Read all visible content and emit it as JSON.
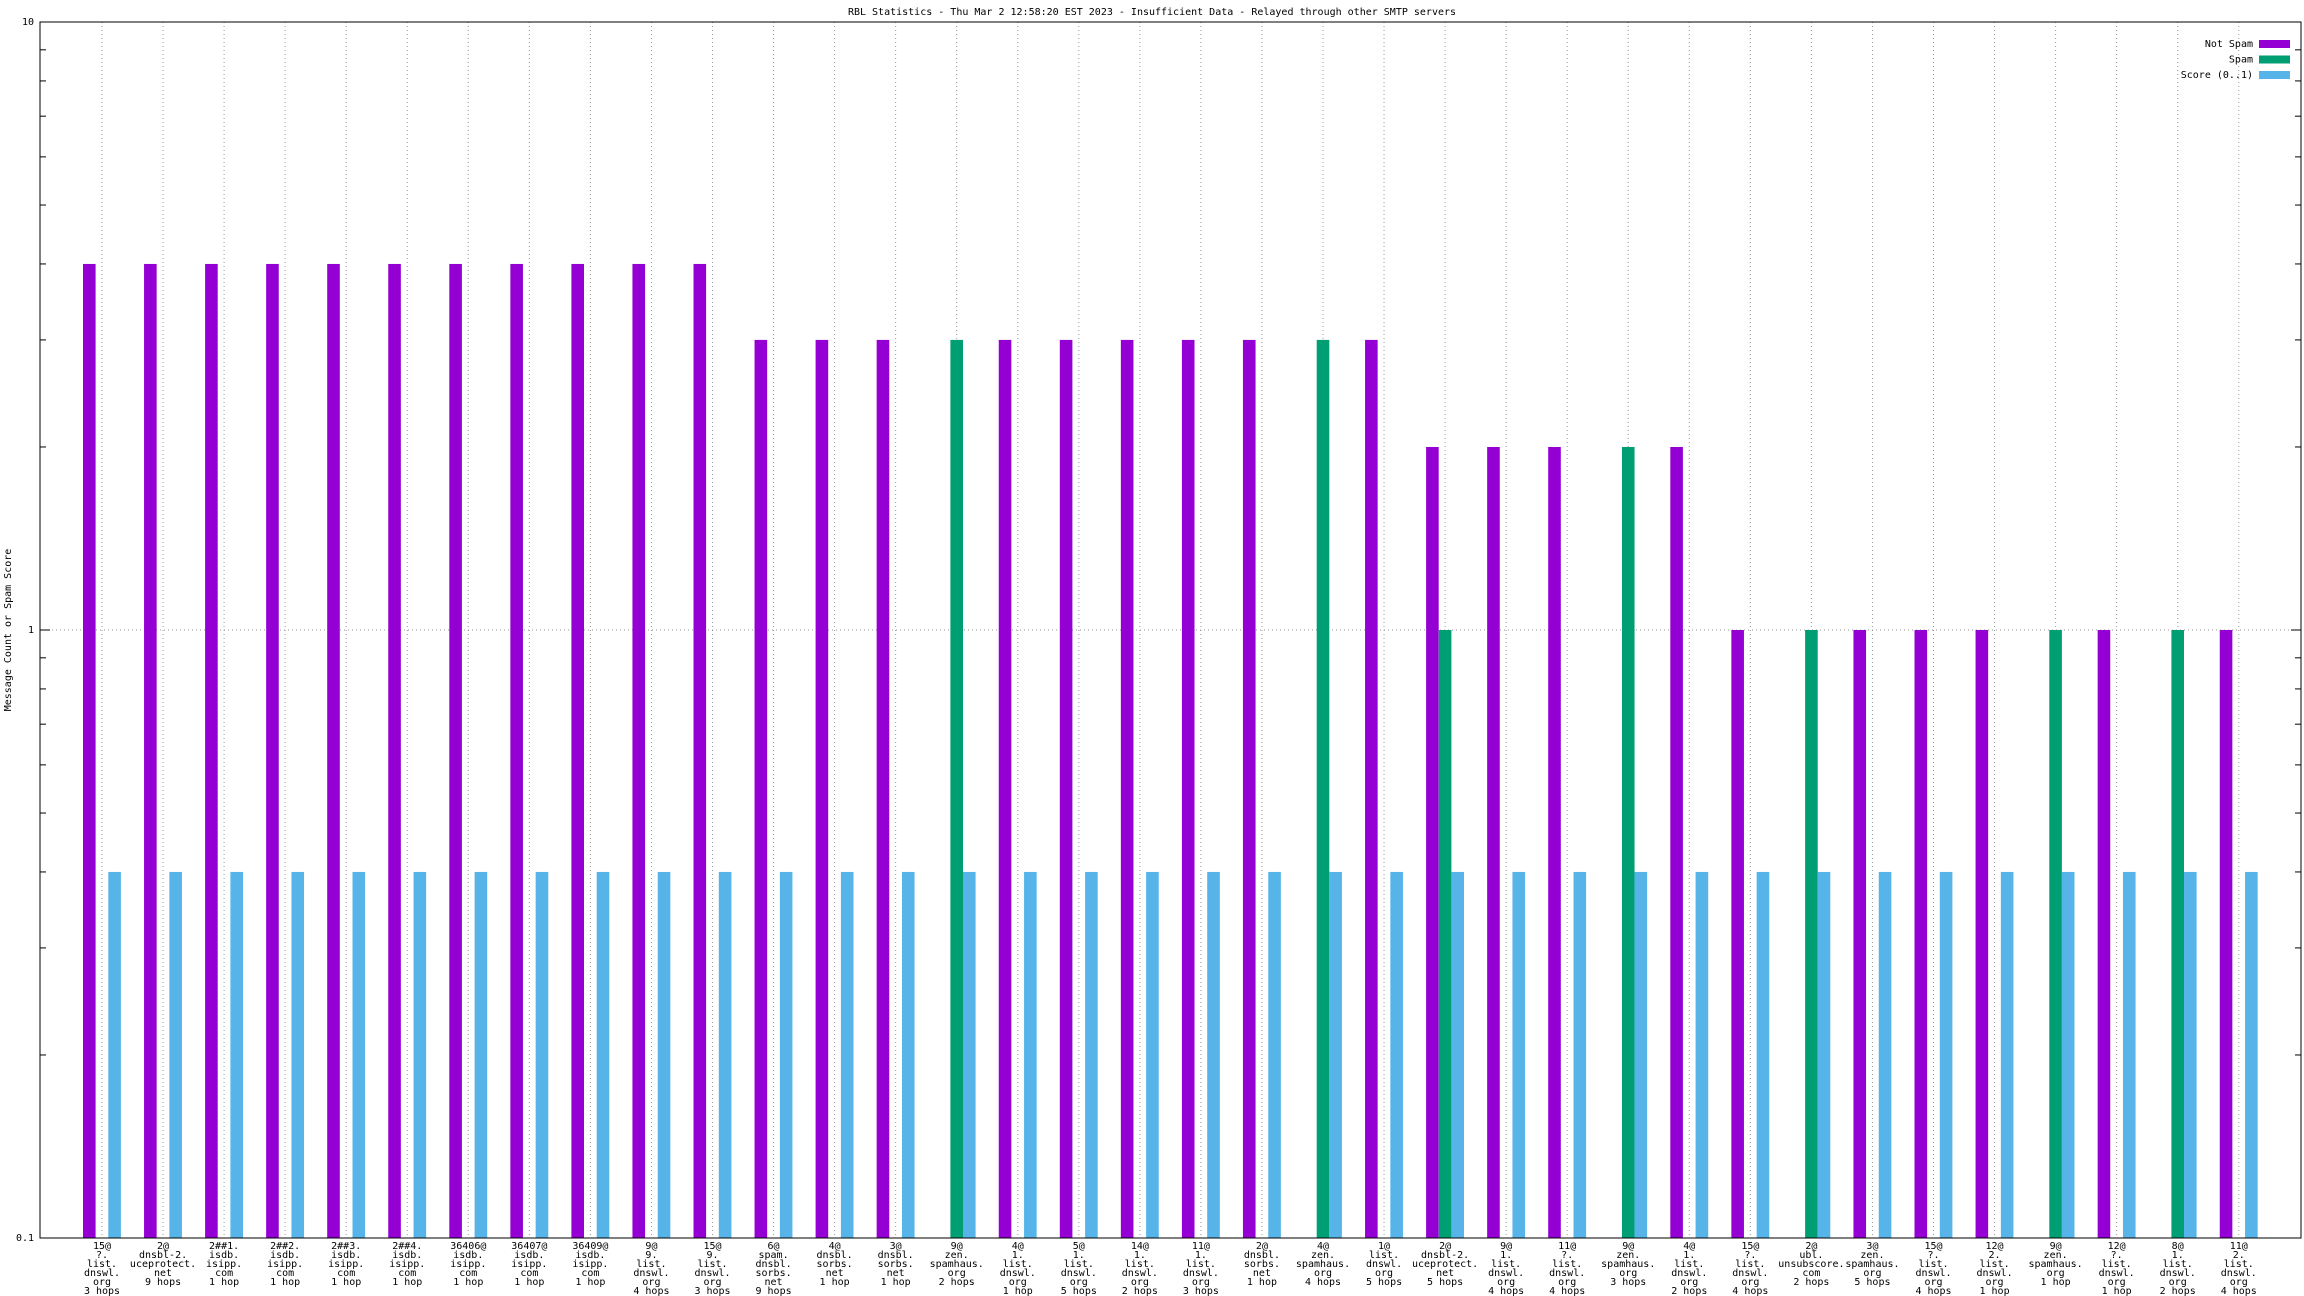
{
  "chart_data": {
    "type": "bar",
    "title": "RBL Statistics - Thu Mar  2 12:58:20 EST 2023 - Insufficient Data - Relayed through other SMTP servers",
    "y_label": "Message Count or Spam Score",
    "log_scale": true,
    "grid": true,
    "legend": "top-right",
    "ylim": [
      0.1,
      10
    ],
    "yticks": [
      0.1,
      1,
      10
    ],
    "yminorticks": [
      0.2,
      0.3,
      0.4,
      0.5,
      0.6,
      0.7,
      0.8,
      0.9,
      2,
      3,
      4,
      5,
      6,
      7,
      8,
      9
    ],
    "categories": [
      [
        "15@",
        "?.",
        "list.",
        "dnswl.",
        "org",
        "3 hops"
      ],
      [
        "2@",
        "dnsbl-2.",
        "uceprotect.",
        "net",
        "9 hops"
      ],
      [
        "2##1.",
        "isdb.",
        "isipp.",
        "com",
        "1 hop"
      ],
      [
        "2##2.",
        "isdb.",
        "isipp.",
        "com",
        "1 hop"
      ],
      [
        "2##3.",
        "isdb.",
        "isipp.",
        "com",
        "1 hop"
      ],
      [
        "2##4.",
        "isdb.",
        "isipp.",
        "com",
        "1 hop"
      ],
      [
        "36406@",
        "isdb.",
        "isipp.",
        "com",
        "1 hop"
      ],
      [
        "36407@",
        "isdb.",
        "isipp.",
        "com",
        "1 hop"
      ],
      [
        "36409@",
        "isdb.",
        "isipp.",
        "com",
        "1 hop"
      ],
      [
        "9@",
        "9.",
        "list.",
        "dnswl.",
        "org",
        "4 hops"
      ],
      [
        "15@",
        "9.",
        "list.",
        "dnswl.",
        "org",
        "3 hops"
      ],
      [
        "6@",
        "spam.",
        "dnsbl.",
        "sorbs.",
        "net",
        "9 hops"
      ],
      [
        "4@",
        "dnsbl.",
        "sorbs.",
        "net",
        "1 hop"
      ],
      [
        "3@",
        "dnsbl.",
        "sorbs.",
        "net",
        "1 hop"
      ],
      [
        "9@",
        "zen.",
        "spamhaus.",
        "org",
        "2 hops"
      ],
      [
        "4@",
        "1.",
        "list.",
        "dnswl.",
        "org",
        "1 hop"
      ],
      [
        "5@",
        "1.",
        "list.",
        "dnswl.",
        "org",
        "5 hops"
      ],
      [
        "14@",
        "1.",
        "list.",
        "dnswl.",
        "org",
        "2 hops"
      ],
      [
        "11@",
        "1.",
        "list.",
        "dnswl.",
        "org",
        "3 hops"
      ],
      [
        "2@",
        "dnsbl.",
        "sorbs.",
        "net",
        "1 hop"
      ],
      [
        "4@",
        "zen.",
        "spamhaus.",
        "org",
        "4 hops"
      ],
      [
        "1@",
        "list.",
        "dnswl.",
        "org",
        "5 hops"
      ],
      [
        "2@",
        "dnsbl-2.",
        "uceprotect.",
        "net",
        "5 hops"
      ],
      [
        "9@",
        "1.",
        "list.",
        "dnswl.",
        "org",
        "4 hops"
      ],
      [
        "11@",
        "?.",
        "list.",
        "dnswl.",
        "org",
        "4 hops"
      ],
      [
        "9@",
        "zen.",
        "spamhaus.",
        "org",
        "3 hops"
      ],
      [
        "4@",
        "1.",
        "list.",
        "dnswl.",
        "org",
        "2 hops"
      ],
      [
        "15@",
        "?.",
        "list.",
        "dnswl.",
        "org",
        "4 hops"
      ],
      [
        "2@",
        "ubl.",
        "unsubscore.",
        "com",
        "2 hops"
      ],
      [
        "3@",
        "zen.",
        "spamhaus.",
        "org",
        "5 hops"
      ],
      [
        "15@",
        "?.",
        "list.",
        "dnswl.",
        "org",
        "4 hops"
      ],
      [
        "12@",
        "2.",
        "list.",
        "dnswl.",
        "org",
        "1 hop"
      ],
      [
        "9@",
        "zen.",
        "spamhaus.",
        "org",
        "1 hop"
      ],
      [
        "12@",
        "?.",
        "list.",
        "dnswl.",
        "org",
        "1 hop"
      ],
      [
        "8@",
        "1.",
        "list.",
        "dnswl.",
        "org",
        "2 hops"
      ],
      [
        "11@",
        "2.",
        "list.",
        "dnswl.",
        "org",
        "4 hops"
      ]
    ],
    "series": [
      {
        "name": "Not Spam",
        "color": "#9400d3",
        "values": [
          4,
          4,
          4,
          4,
          4,
          4,
          4,
          4,
          4,
          4,
          4,
          3,
          3,
          3,
          null,
          3,
          3,
          3,
          3,
          3,
          null,
          3,
          2,
          2,
          2,
          null,
          2,
          1,
          null,
          1,
          1,
          1,
          null,
          1,
          null,
          1
        ]
      },
      {
        "name": "Spam",
        "color": "#009e73",
        "values": [
          null,
          null,
          null,
          null,
          null,
          null,
          null,
          null,
          null,
          null,
          null,
          null,
          null,
          null,
          3,
          null,
          null,
          null,
          null,
          null,
          3,
          null,
          1,
          null,
          null,
          2,
          null,
          null,
          1,
          null,
          null,
          null,
          1,
          null,
          1,
          null
        ]
      },
      {
        "name": "Score (0..1)",
        "color": "#56b4e9",
        "values": [
          0.4,
          0.4,
          0.4,
          0.4,
          0.4,
          0.4,
          0.4,
          0.4,
          0.4,
          0.4,
          0.4,
          0.4,
          0.4,
          0.4,
          0.4,
          0.4,
          0.4,
          0.4,
          0.4,
          0.4,
          0.4,
          0.4,
          0.4,
          0.4,
          0.4,
          0.4,
          0.4,
          0.4,
          0.4,
          0.4,
          0.4,
          0.4,
          0.4,
          0.4,
          0.4,
          0.4
        ]
      }
    ]
  }
}
